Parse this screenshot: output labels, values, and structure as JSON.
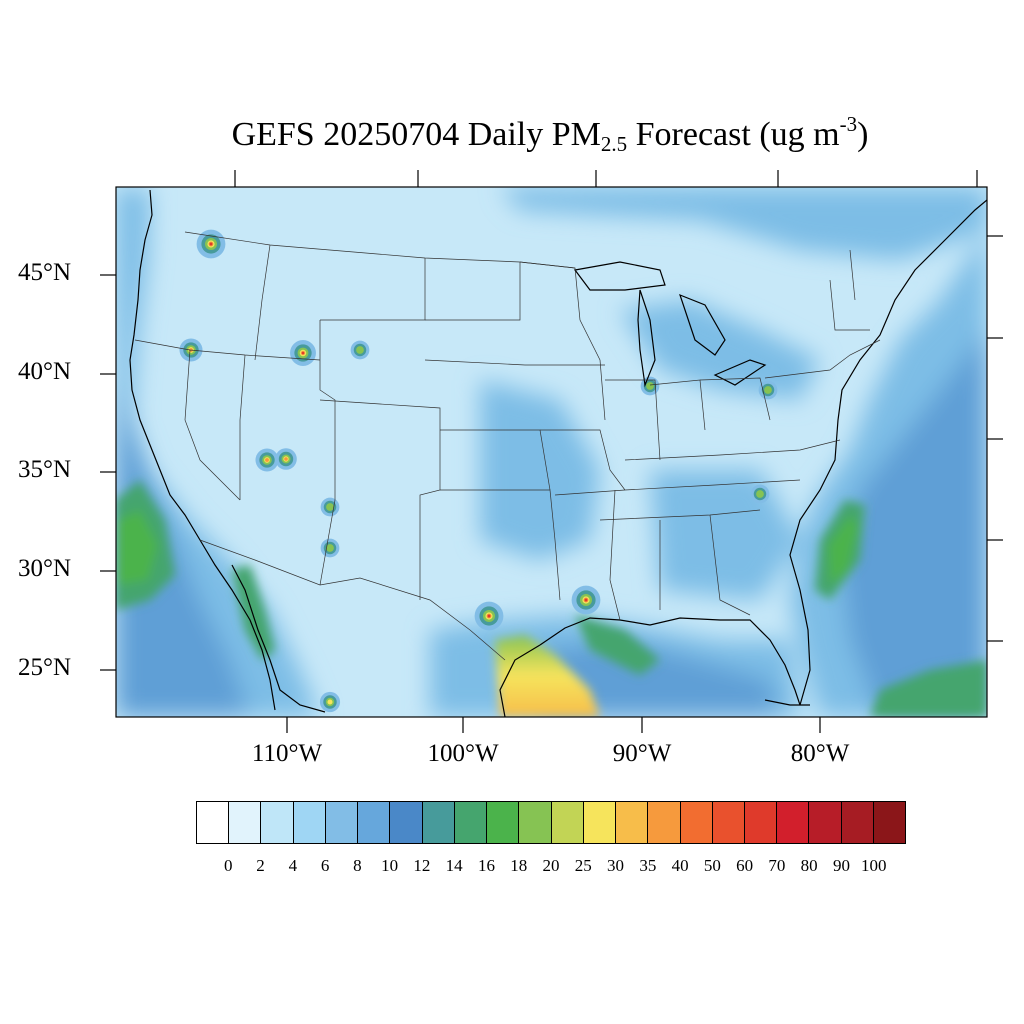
{
  "title": {
    "prefix": "GEFS 20250704 Daily PM",
    "subscript": "2.5",
    "middle": " Forecast (ug m",
    "superscript": "-3",
    "suffix": ")"
  },
  "lat_labels": [
    "45°N",
    "40°N",
    "35°N",
    "30°N",
    "25°N"
  ],
  "lon_labels": [
    "110°W",
    "100°W",
    "90°W",
    "80°W"
  ],
  "colorbar": {
    "labels": [
      "0",
      "2",
      "4",
      "6",
      "8",
      "10",
      "12",
      "14",
      "16",
      "18",
      "20",
      "25",
      "30",
      "35",
      "40",
      "50",
      "60",
      "70",
      "80",
      "90",
      "100"
    ],
    "colors": [
      "#ffffff",
      "#e1f3fc",
      "#bfe6f8",
      "#9fd6f4",
      "#82bde6",
      "#66a7dc",
      "#4a88c8",
      "#479b9b",
      "#45a56e",
      "#4bb34b",
      "#86c353",
      "#c2d455",
      "#f6e45c",
      "#f7bd4a",
      "#f69a3d",
      "#f26d30",
      "#e9512d",
      "#df3a2b",
      "#d21f2c",
      "#b71d28",
      "#a61c23",
      "#8b1619"
    ]
  },
  "palette": {
    "land_base": "#c7e8f8",
    "ocean_mid": "#7dbde6",
    "ocean_deep": "#5e9fd6",
    "coast": "#000000",
    "state_line": "#333333"
  }
}
